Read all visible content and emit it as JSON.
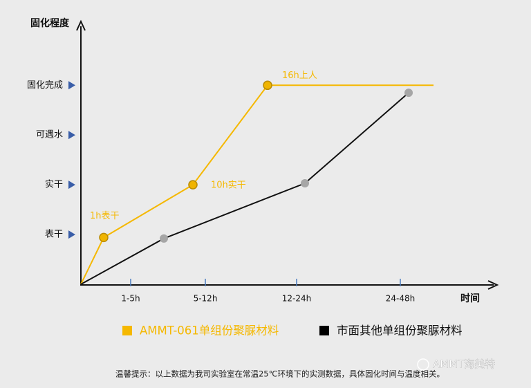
{
  "chart_data": {
    "type": "line",
    "x_label": "时间",
    "y_label": "固化程度",
    "xlim": [
      0,
      100
    ],
    "xticks": [
      {
        "value": 12,
        "label": "1-5h"
      },
      {
        "value": 30,
        "label": "5-12h"
      },
      {
        "value": 52,
        "label": "12-24h"
      },
      {
        "value": 77,
        "label": "24-48h"
      }
    ],
    "ylim": [
      0,
      5.2
    ],
    "yticks": [
      {
        "value": 1,
        "label": "表干"
      },
      {
        "value": 2,
        "label": "实干"
      },
      {
        "value": 3,
        "label": "可遇水"
      },
      {
        "value": 4,
        "label": "固化完成"
      }
    ],
    "series": [
      {
        "name": "AMMT-061单组份聚脲材料",
        "color": "#f5b800",
        "marker_color": "#f0b400",
        "x": [
          0,
          5.5,
          27,
          45,
          85
        ],
        "values": [
          0,
          0.94,
          2,
          4,
          4
        ],
        "markers": [
          false,
          true,
          true,
          true,
          false
        ],
        "point_labels": [
          null,
          "1h表干",
          "10h实干",
          "16h上人",
          null
        ]
      },
      {
        "name": "市面其他单组份聚脲材料",
        "color": "#111111",
        "marker_color": "#a6a6a6",
        "x": [
          0,
          20,
          54,
          79
        ],
        "values": [
          0,
          0.92,
          2.03,
          3.85
        ],
        "markers": [
          false,
          true,
          true,
          true
        ]
      }
    ],
    "footnote": "温馨提示：以上数据为我司实验室在常温25℃环境下的实测数据，具体固化时间与温度相关。",
    "watermark": "AMMT海美特"
  }
}
